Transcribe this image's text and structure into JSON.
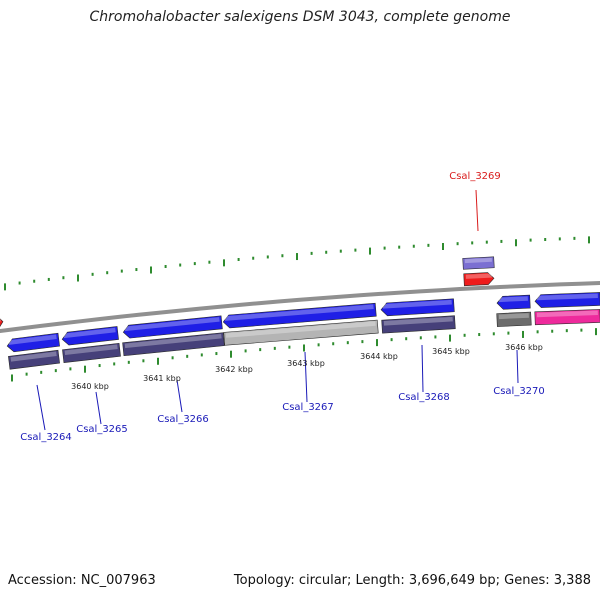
{
  "title": "Chromohalobacter salexigens DSM 3043, complete genome",
  "footer": {
    "accession": "Accession: NC_007963",
    "stats": "Topology: circular; Length: 3,696,649 bp; Genes: 3,388"
  },
  "scale_labels": [
    "3640 kbp",
    "3641 kbp",
    "3642 kbp",
    "3643 kbp",
    "3644 kbp",
    "3645 kbp",
    "3646 kbp"
  ],
  "gene_labels": [
    "Csal_3264",
    "Csal_3265",
    "Csal_3266",
    "Csal_3267",
    "Csal_3268",
    "Csal_3269",
    "Csal_3270"
  ],
  "highlighted_gene": "Csal_3269",
  "colors": {
    "cds": "#1f1fe6",
    "cog": "#46407a",
    "rna": "#ee1c1c",
    "pseudo": "#b4b4b4",
    "grey": "#6c6c6c",
    "pink": "#ee2a9c",
    "purple": "#7b6fd2",
    "tick": "#2e8b2e",
    "backbone": "#909090"
  }
}
